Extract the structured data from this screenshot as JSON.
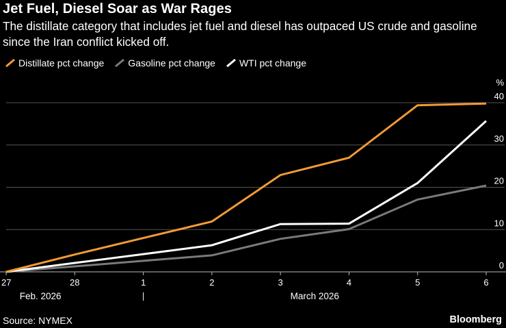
{
  "header": {
    "title": "Jet Fuel, Diesel Soar as War Rages",
    "subtitle": "The distillate category that includes jet fuel and diesel has outpaced US crude and gasoline since the Iran conflict kicked off."
  },
  "footer": {
    "source": "Source: NYMEX",
    "brand": "Bloomberg"
  },
  "colors": {
    "background": "#000000",
    "distillate": "#f39a36",
    "gasoline": "#7a7a7a",
    "wti": "#ffffff",
    "grid": "#555555"
  },
  "chart_data": {
    "type": "line",
    "title": "Jet Fuel, Diesel Soar as War Rages",
    "ylabel": "%",
    "ylim": [
      0,
      40
    ],
    "yticks": [
      0,
      10,
      20,
      30,
      40
    ],
    "categories": [
      "27",
      "28",
      "1",
      "2",
      "3",
      "4",
      "5",
      "6"
    ],
    "month_labels": [
      {
        "label": "Feb. 2026",
        "center_index": 0.5
      },
      {
        "label": "March 2026",
        "center_index": 4.5
      }
    ],
    "month_separator_index": 2,
    "series": [
      {
        "name": "Distillate pct change",
        "color": "#f39a36",
        "values": [
          0,
          4.1,
          8.0,
          11.9,
          22.9,
          27.0,
          39.4,
          39.8
        ]
      },
      {
        "name": "Gasoline pct change",
        "color": "#7a7a7a",
        "values": [
          0,
          1.3,
          2.6,
          3.9,
          7.8,
          10.1,
          17.1,
          20.4
        ]
      },
      {
        "name": "WTI pct change",
        "color": "#ffffff",
        "values": [
          0,
          2.1,
          4.2,
          6.3,
          11.3,
          11.4,
          21.0,
          35.7
        ]
      }
    ],
    "legend_position": "top-left"
  }
}
